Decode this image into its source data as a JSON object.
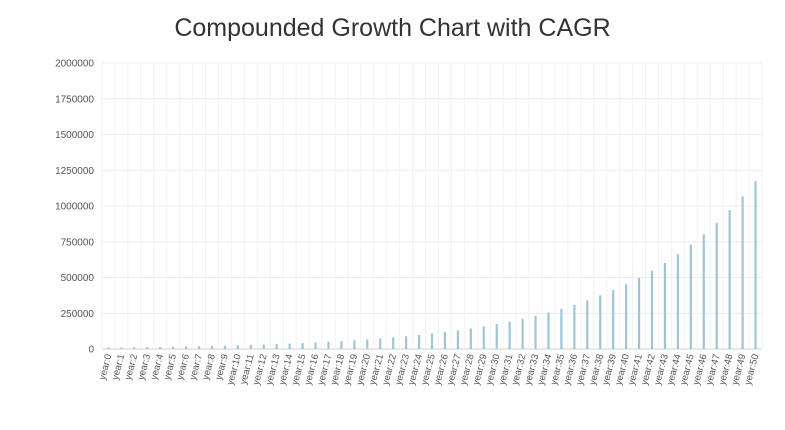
{
  "chart_data": {
    "type": "bar",
    "title": "Compounded Growth Chart with CAGR",
    "xlabel": "",
    "ylabel": "",
    "ylim": [
      0,
      2000000
    ],
    "yticks": [
      0,
      250000,
      500000,
      750000,
      1000000,
      1250000,
      1500000,
      1750000,
      2000000
    ],
    "ytick_labels": [
      "0",
      "250000",
      "500000",
      "750000",
      "1000000",
      "1250000",
      "1500000",
      "1750000",
      "2000000"
    ],
    "grid": true,
    "legend": "none",
    "bar_color": "#9fc4d6",
    "categories": [
      "year:0",
      "year:1",
      "year:2",
      "year:3",
      "year:4",
      "year:5",
      "year:6",
      "year:7",
      "year:8",
      "year:9",
      "year:10",
      "year:11",
      "year:12",
      "year:13",
      "year:14",
      "year:15",
      "year:16",
      "year:17",
      "year:18",
      "year:19",
      "year:20",
      "year:21",
      "year:22",
      "year:23",
      "year:24",
      "year:25",
      "year:26",
      "year:27",
      "year:28",
      "year:29",
      "year:30",
      "year:31",
      "year:32",
      "year:33",
      "year:34",
      "year:35",
      "year:36",
      "year:37",
      "year:38",
      "year:39",
      "year:40",
      "year:41",
      "year:42",
      "year:43",
      "year:44",
      "year:45",
      "year:46",
      "year:47",
      "year:48",
      "year:49",
      "year:50"
    ],
    "values": [
      10000,
      11000,
      12100,
      13300,
      14600,
      16100,
      17700,
      19500,
      21400,
      23600,
      25900,
      28500,
      31400,
      34500,
      38000,
      41800,
      46000,
      50500,
      55600,
      61200,
      67300,
      74000,
      81400,
      89500,
      98500,
      108300,
      119200,
      131100,
      144200,
      158600,
      174500,
      191900,
      211100,
      232200,
      255500,
      281000,
      309100,
      340000,
      374000,
      411500,
      452600,
      497900,
      547700,
      602500,
      662700,
      729000,
      801900,
      882100,
      970300,
      1067300,
      1174000
    ]
  }
}
